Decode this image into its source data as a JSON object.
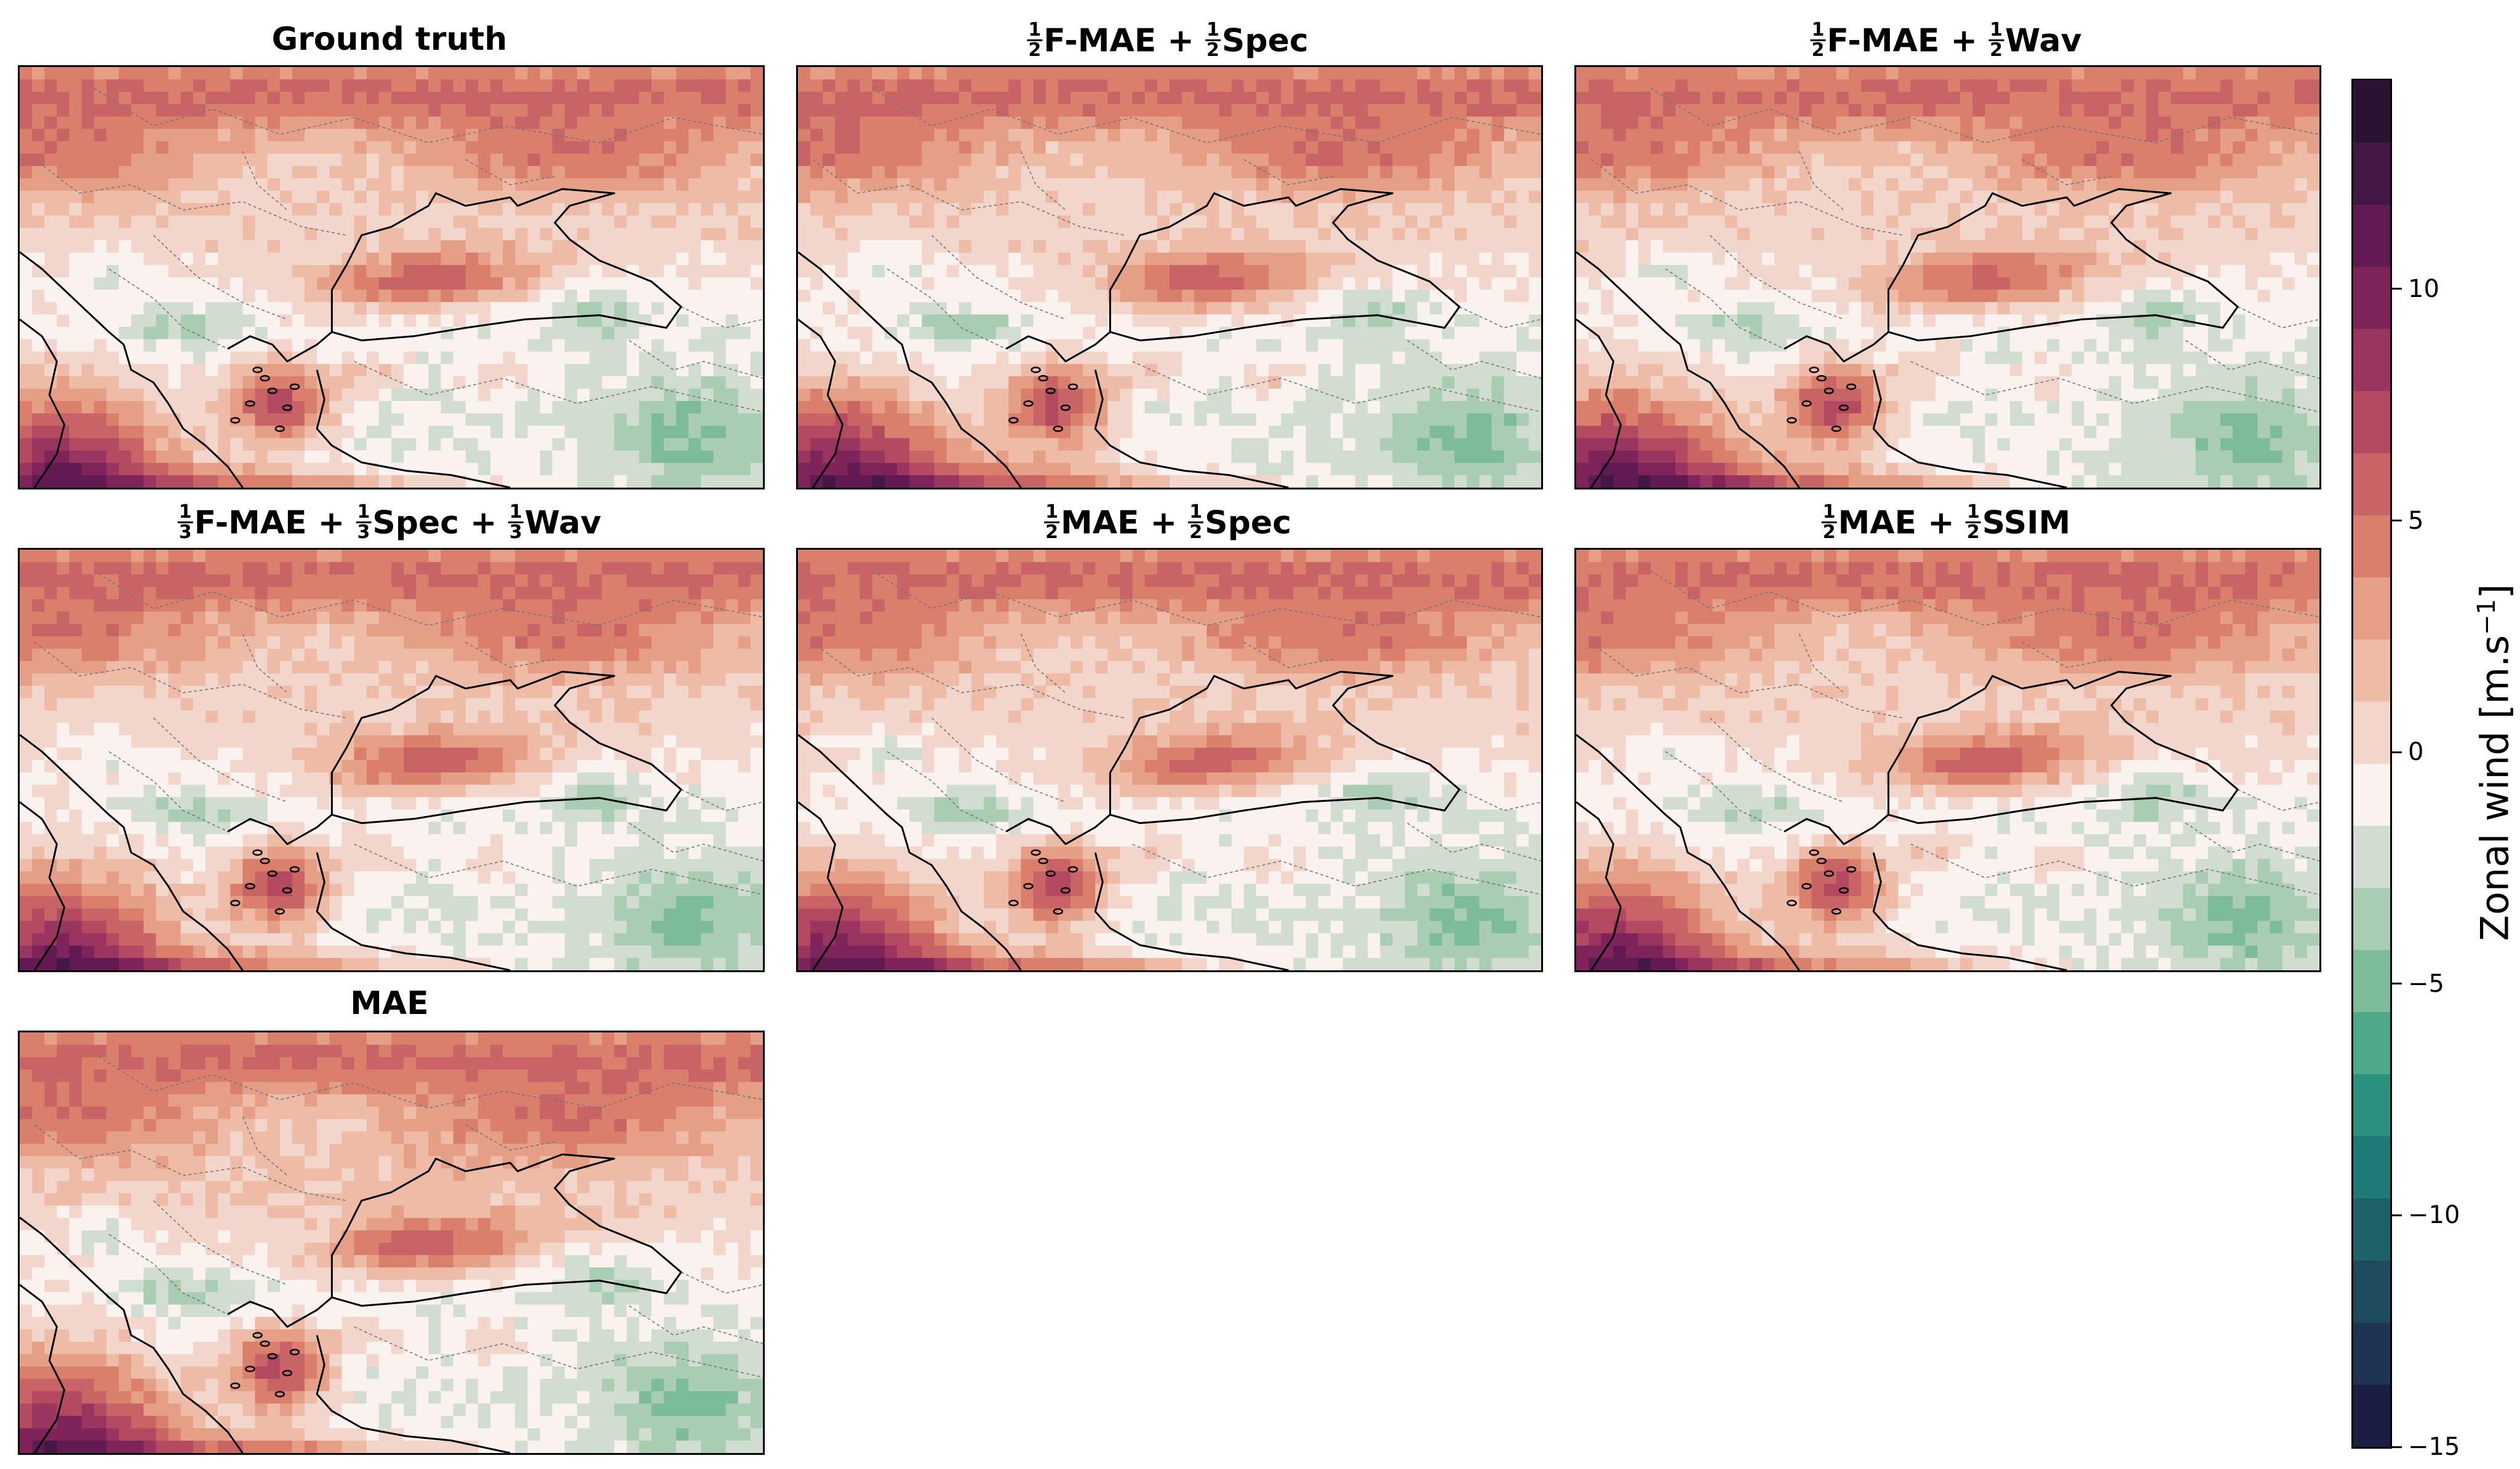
{
  "panels": [
    {
      "id": "ground-truth",
      "title": {
        "parts": [
          {
            "text": "Ground truth"
          }
        ]
      },
      "variant": "truth"
    },
    {
      "id": "fmae-spec",
      "title": {
        "parts": [
          {
            "frac": [
              "1",
              "2"
            ]
          },
          {
            "text": "F-MAE + "
          },
          {
            "frac": [
              "1",
              "2"
            ]
          },
          {
            "text": "Spec"
          }
        ]
      },
      "variant": "fmae-spec"
    },
    {
      "id": "fmae-wav",
      "title": {
        "parts": [
          {
            "frac": [
              "1",
              "2"
            ]
          },
          {
            "text": "F-MAE + "
          },
          {
            "frac": [
              "1",
              "2"
            ]
          },
          {
            "text": "Wav"
          }
        ]
      },
      "variant": "fmae-wav"
    },
    {
      "id": "fmae-spec-wav",
      "title": {
        "parts": [
          {
            "frac": [
              "1",
              "3"
            ]
          },
          {
            "text": "F-MAE + "
          },
          {
            "frac": [
              "1",
              "3"
            ]
          },
          {
            "text": "Spec + "
          },
          {
            "frac": [
              "1",
              "3"
            ]
          },
          {
            "text": "Wav"
          }
        ]
      },
      "variant": "fmae-spec-wav"
    },
    {
      "id": "mae-spec",
      "title": {
        "parts": [
          {
            "frac": [
              "1",
              "2"
            ]
          },
          {
            "text": "MAE + "
          },
          {
            "frac": [
              "1",
              "2"
            ]
          },
          {
            "text": "Spec"
          }
        ]
      },
      "variant": "mae-spec"
    },
    {
      "id": "mae-ssim",
      "title": {
        "parts": [
          {
            "frac": [
              "1",
              "2"
            ]
          },
          {
            "text": "MAE + "
          },
          {
            "frac": [
              "1",
              "2"
            ]
          },
          {
            "text": "SSIM"
          }
        ]
      },
      "variant": "mae-ssim"
    },
    {
      "id": "mae",
      "title": {
        "parts": [
          {
            "text": "MAE"
          }
        ]
      },
      "variant": "mae"
    }
  ],
  "colorbar": {
    "label": "Zonal wind [m.s",
    "label_sup": "−1",
    "label_end": "]",
    "min": -15,
    "max": 14.5,
    "step": 1.5,
    "ticks": [
      {
        "value": -15,
        "label": "−15"
      },
      {
        "value": -10,
        "label": "−10"
      },
      {
        "value": -5,
        "label": "−5"
      },
      {
        "value": 0,
        "label": "0"
      },
      {
        "value": 5,
        "label": "5"
      },
      {
        "value": 10,
        "label": "10"
      }
    ],
    "colors": [
      "#1b1e43",
      "#1e3552",
      "#1f4b5e",
      "#1d6169",
      "#1f7a76",
      "#2a917f",
      "#4fa889",
      "#7cbc98",
      "#a8cdb2",
      "#d2ddd1",
      "#f9f2ee",
      "#f3d6cb",
      "#edbba6",
      "#e69f87",
      "#d97f6c",
      "#c86366",
      "#b44a62",
      "#9a355f",
      "#7f245b",
      "#611b52",
      "#441845",
      "#2a1233"
    ]
  },
  "chart_data": {
    "type": "heatmap",
    "description_fields": [
      "panels",
      "colorbar"
    ],
    "panel_titles": [
      "Ground truth",
      "1/2 F-MAE + 1/2 Spec",
      "1/2 F-MAE + 1/2 Wav",
      "1/3 F-MAE + 1/3 Spec + 1/3 Wav",
      "1/2 MAE + 1/2 Spec",
      "1/2 MAE + 1/2 SSIM",
      "MAE"
    ],
    "colorbar_label": "Zonal wind [m.s−1]",
    "colorbar_range": [
      -15,
      14.5
    ],
    "colorbar_ticks": [
      -15,
      -10,
      -5,
      0,
      5,
      10
    ],
    "colormap": "diverging green-teal (negative) to white (0) to rose-purple (positive)"
  }
}
